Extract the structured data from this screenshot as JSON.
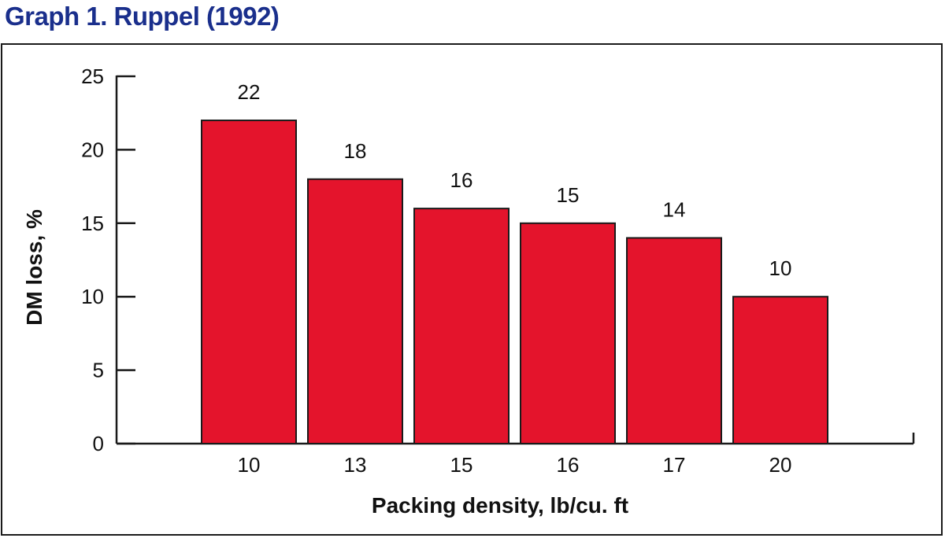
{
  "colors": {
    "title": "#1a2f8c",
    "bar": "#e4142c",
    "bar_stroke": "#1a1a1a",
    "axis": "#1a1a1a"
  },
  "chart_data": {
    "type": "bar",
    "title": "Graph 1. Ruppel (1992)",
    "xlabel": "Packing density, lb/cu. ft",
    "ylabel": "DM loss, %",
    "categories": [
      "10",
      "13",
      "15",
      "16",
      "17",
      "20"
    ],
    "values": [
      22,
      18,
      16,
      15,
      14,
      10
    ],
    "data_labels": [
      "22",
      "18",
      "16",
      "15",
      "14",
      "10"
    ],
    "ylim": [
      0,
      25
    ],
    "yticks": [
      "0",
      "5",
      "10",
      "15",
      "20",
      "25"
    ],
    "grid": false,
    "legend": "none"
  }
}
